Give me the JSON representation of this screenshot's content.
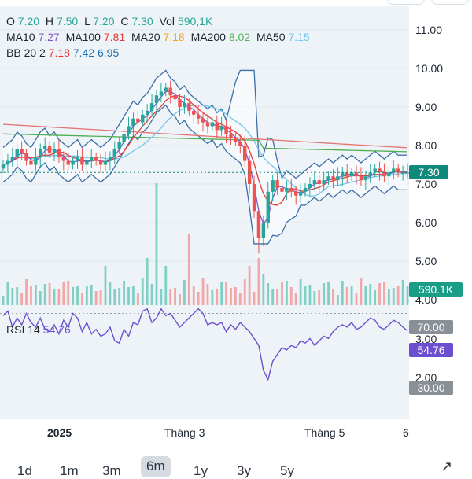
{
  "header": {
    "ohlc": [
      {
        "key": "O",
        "value": "7.20"
      },
      {
        "key": "H",
        "value": "7.50"
      },
      {
        "key": "L",
        "value": "7.20"
      },
      {
        "key": "C",
        "value": "7.30"
      },
      {
        "key": "Vol",
        "value": "590,1K"
      }
    ],
    "ma": [
      {
        "key": "MA10",
        "value": "7.27",
        "color": "#7e57c2"
      },
      {
        "key": "MA100",
        "value": "7.81",
        "color": "#e53935"
      },
      {
        "key": "MA20",
        "value": "7.18",
        "color": "#f59f1a"
      },
      {
        "key": "MA200",
        "value": "8.02",
        "color": "#4caf50"
      },
      {
        "key": "MA50",
        "value": "7.15",
        "color": "#74c6ea"
      }
    ],
    "bb": {
      "label": "BB 20 2",
      "mid": "7.18",
      "upper": "7.42",
      "lower": "6.95",
      "mid_color": "#e53935",
      "upper_color": "#1e6fb0",
      "lower_color": "#1e6fb0"
    },
    "rsi_label": "RSI 14",
    "rsi_value": "54.76",
    "rsi_color": "#6c4fcf"
  },
  "price_tag": "7.30",
  "volume_tag": "590.1K",
  "rsi_tags": {
    "upper": "70.00",
    "current": "54.76",
    "lower": "30.00"
  },
  "ranges": [
    "1d",
    "1m",
    "3m",
    "6m",
    "1y",
    "3y",
    "5y"
  ],
  "active_range": "6m",
  "colors": {
    "up": "#26a69a",
    "down": "#ef5350",
    "bb_band": "#3b6ea8",
    "rsi_line": "#6c4fcf",
    "price_line": "#11897a"
  },
  "chart_data": {
    "type": "candlestick",
    "y_ticks": [
      "11.00",
      "10.00",
      "9.00",
      "8.00",
      "7.00",
      "6.00",
      "5.00",
      "4.00"
    ],
    "rsi_ticks": [
      "3.00",
      "2.00"
    ],
    "ylim": [
      4.0,
      11.0
    ],
    "x_ticks": [
      "2025",
      "Tháng 3",
      "Tháng 5",
      "6"
    ],
    "last_close": 7.3,
    "rsi": {
      "period": 14,
      "upper": 70,
      "lower": 30,
      "values": [
        68,
        72,
        58,
        66,
        60,
        70,
        62,
        58,
        66,
        56,
        54,
        60,
        52,
        64,
        58,
        70,
        66,
        54,
        62,
        52,
        56,
        50,
        52,
        58,
        46,
        44,
        56,
        50,
        62,
        60,
        72,
        74,
        62,
        66,
        74,
        68,
        70,
        64,
        58,
        62,
        66,
        70,
        74,
        70,
        60,
        62,
        60,
        62,
        54,
        60,
        56,
        62,
        58,
        54,
        48,
        42,
        20,
        12,
        28,
        34,
        40,
        38,
        42,
        40,
        46,
        44,
        48,
        42,
        46,
        50,
        48,
        54,
        58,
        60,
        58,
        62,
        56,
        58,
        62,
        66,
        64,
        58,
        56,
        60,
        64,
        62,
        58,
        54.76
      ]
    }
  }
}
